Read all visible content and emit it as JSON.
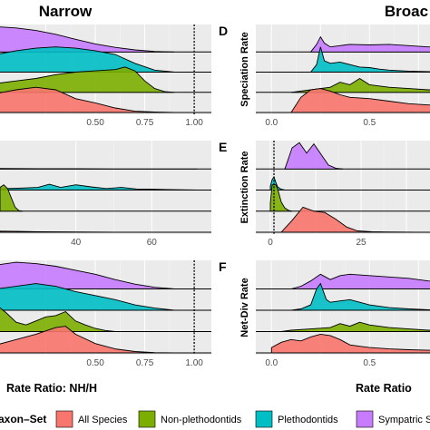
{
  "figure": {
    "left_title": "Narrow",
    "right_title": "Broac",
    "left_xlabel": "Rate Ratio: NH/H",
    "right_xlabel": "Rate Ratio"
  },
  "legend": {
    "title": "axon–Set",
    "entries": [
      {
        "label": "All Species",
        "color": "#f8766d"
      },
      {
        "label": "Non-plethodontids",
        "color": "#7cae00"
      },
      {
        "label": "Plethodontids",
        "color": "#00bfc4"
      },
      {
        "label": "Sympatric S",
        "color": "#c77cff"
      }
    ]
  },
  "colors": {
    "all_species": "#f8766d",
    "non_plethodontids": "#7cae00",
    "plethodontids": "#00bfc4",
    "sympatric": "#c77cff",
    "panel_bg": "#ebebeb"
  },
  "chart_data": [
    {
      "id": "narrow-speciation",
      "type": "area",
      "panel_letter": "",
      "ylabel": "",
      "xlim": [
        0.0,
        1.05
      ],
      "xticks": [
        0.25,
        0.5,
        0.75,
        1.0
      ],
      "xtick_labels": [
        "",
        "0.50",
        "0.75",
        "1.00"
      ],
      "reference_x": 1.0,
      "series": [
        {
          "key": "all_species",
          "x": [
            0.0,
            0.1,
            0.2,
            0.3,
            0.4,
            0.5,
            0.6,
            0.7,
            0.8,
            0.9,
            0.95
          ],
          "y": [
            0.75,
            0.9,
            1.0,
            0.9,
            0.55,
            0.38,
            0.18,
            0.05,
            0.02,
            0.0,
            0.0
          ]
        },
        {
          "key": "non_plethodontids",
          "x": [
            0.0,
            0.1,
            0.2,
            0.3,
            0.4,
            0.5,
            0.6,
            0.65,
            0.7,
            0.75,
            0.8,
            0.85,
            0.9
          ],
          "y": [
            0.35,
            0.45,
            0.55,
            0.7,
            0.8,
            0.85,
            0.9,
            1.0,
            0.85,
            0.45,
            0.15,
            0.03,
            0.0
          ]
        },
        {
          "key": "plethodontids",
          "x": [
            0.0,
            0.1,
            0.2,
            0.3,
            0.4,
            0.5,
            0.6,
            0.7,
            0.8,
            0.9
          ],
          "y": [
            0.7,
            0.85,
            0.95,
            1.0,
            0.95,
            0.85,
            0.7,
            0.35,
            0.08,
            0.0
          ]
        },
        {
          "key": "sympatric",
          "x": [
            0.0,
            0.1,
            0.2,
            0.3,
            0.4,
            0.5,
            0.6,
            0.7,
            0.8,
            0.9
          ],
          "y": [
            1.0,
            0.95,
            0.85,
            0.7,
            0.5,
            0.32,
            0.18,
            0.08,
            0.02,
            0.0
          ]
        }
      ]
    },
    {
      "id": "narrow-extinction",
      "type": "area",
      "panel_letter": "",
      "ylabel": "",
      "xlim": [
        20,
        75
      ],
      "xticks": [
        40,
        60
      ],
      "xtick_labels": [
        "40",
        "60"
      ],
      "reference_x": null,
      "series": [
        {
          "key": "all_species",
          "x": [
            20,
            25,
            30,
            40,
            50,
            60,
            72
          ],
          "y": [
            0.04,
            0.03,
            0.02,
            0.01,
            0.0,
            0.0,
            0.0
          ]
        },
        {
          "key": "non_plethodontids",
          "x": [
            20,
            21,
            22,
            23,
            24,
            25,
            26
          ],
          "y": [
            0.9,
            1.0,
            0.85,
            0.5,
            0.15,
            0.02,
            0.0
          ]
        },
        {
          "key": "plethodontids",
          "x": [
            20,
            25,
            30,
            33,
            36,
            40,
            44,
            48,
            52,
            56,
            60,
            64,
            68,
            72
          ],
          "y": [
            0.05,
            0.07,
            0.1,
            0.22,
            0.1,
            0.2,
            0.12,
            0.06,
            0.1,
            0.04,
            0.03,
            0.02,
            0.01,
            0.0
          ]
        },
        {
          "key": "sympatric",
          "x": [
            20,
            30,
            40,
            50,
            60,
            72
          ],
          "y": [
            0.02,
            0.01,
            0.01,
            0.0,
            0.0,
            0.0
          ]
        }
      ]
    },
    {
      "id": "narrow-netdiv",
      "type": "area",
      "panel_letter": "",
      "ylabel": "",
      "xlim": [
        0.0,
        1.05
      ],
      "xticks": [
        0.25,
        0.5,
        0.75,
        1.0
      ],
      "xtick_labels": [
        "",
        "0.50",
        "0.75",
        "1.00"
      ],
      "reference_x": 1.0,
      "series": [
        {
          "key": "all_species",
          "x": [
            0.0,
            0.1,
            0.2,
            0.3,
            0.35,
            0.4,
            0.5,
            0.6,
            0.7,
            0.8,
            0.9
          ],
          "y": [
            0.3,
            0.5,
            0.7,
            0.95,
            1.0,
            0.7,
            0.35,
            0.15,
            0.05,
            0.01,
            0.0
          ]
        },
        {
          "key": "non_plethodontids",
          "x": [
            0.0,
            0.05,
            0.1,
            0.15,
            0.2,
            0.25,
            0.3,
            0.35,
            0.4,
            0.45,
            0.5,
            0.55,
            0.6
          ],
          "y": [
            1.0,
            0.7,
            0.35,
            0.25,
            0.4,
            0.55,
            0.6,
            0.75,
            0.4,
            0.25,
            0.12,
            0.04,
            0.0
          ]
        },
        {
          "key": "plethodontids",
          "x": [
            0.0,
            0.1,
            0.2,
            0.3,
            0.4,
            0.5,
            0.6,
            0.7,
            0.8,
            0.9
          ],
          "y": [
            0.8,
            0.9,
            1.0,
            0.9,
            0.7,
            0.55,
            0.4,
            0.2,
            0.08,
            0.0
          ]
        },
        {
          "key": "sympatric",
          "x": [
            0.0,
            0.1,
            0.2,
            0.3,
            0.4,
            0.5,
            0.6,
            0.7,
            0.8,
            0.9
          ],
          "y": [
            0.9,
            1.0,
            0.95,
            0.85,
            0.7,
            0.55,
            0.35,
            0.18,
            0.06,
            0.0
          ]
        }
      ]
    },
    {
      "id": "broad-speciation",
      "type": "area",
      "panel_letter": "D",
      "ylabel": "Speciation Rate",
      "xlim": [
        -0.08,
        0.92
      ],
      "xticks": [
        0.0,
        0.25,
        0.5,
        0.75
      ],
      "xtick_labels": [
        "0.0",
        "",
        "0.5",
        ""
      ],
      "reference_x": null,
      "series": [
        {
          "key": "all_species",
          "x": [
            0.1,
            0.15,
            0.2,
            0.25,
            0.3,
            0.35,
            0.4,
            0.5,
            0.6,
            0.7,
            0.8,
            0.92
          ],
          "y": [
            0.0,
            0.6,
            0.9,
            0.95,
            0.85,
            0.7,
            0.6,
            0.55,
            0.45,
            0.35,
            0.3,
            0.3
          ]
        },
        {
          "key": "non_plethodontids",
          "x": [
            0.1,
            0.2,
            0.3,
            0.35,
            0.4,
            0.45,
            0.5,
            0.6,
            0.7,
            0.8,
            0.92
          ],
          "y": [
            0.0,
            0.1,
            0.2,
            0.4,
            0.3,
            0.55,
            0.3,
            0.2,
            0.15,
            0.1,
            0.1
          ]
        },
        {
          "key": "plethodontids",
          "x": [
            0.2,
            0.23,
            0.25,
            0.27,
            0.3,
            0.35,
            0.4,
            0.45,
            0.5,
            0.55,
            0.6,
            0.7,
            0.8,
            0.92
          ],
          "y": [
            0.0,
            0.3,
            1.0,
            0.45,
            0.35,
            0.4,
            0.3,
            0.2,
            0.18,
            0.12,
            0.08,
            0.04,
            0.02,
            0.02
          ]
        },
        {
          "key": "sympatric",
          "x": [
            0.2,
            0.23,
            0.25,
            0.27,
            0.3,
            0.35,
            0.4,
            0.5,
            0.6,
            0.7,
            0.8,
            0.92
          ],
          "y": [
            0.0,
            0.3,
            0.6,
            0.35,
            0.2,
            0.25,
            0.3,
            0.28,
            0.3,
            0.25,
            0.2,
            0.2
          ]
        }
      ]
    },
    {
      "id": "broad-extinction",
      "type": "area",
      "panel_letter": "E",
      "ylabel": "Extinction Rate",
      "xlim": [
        -4,
        50
      ],
      "xticks": [
        0,
        12.5,
        25,
        37.5
      ],
      "xtick_labels": [
        "0",
        "",
        "25",
        ""
      ],
      "reference_x": 1,
      "series": [
        {
          "key": "all_species",
          "x": [
            3,
            6,
            9,
            12,
            15,
            18,
            21,
            24,
            28,
            32,
            40,
            50
          ],
          "y": [
            0.0,
            0.45,
            0.95,
            0.8,
            0.75,
            0.5,
            0.2,
            0.05,
            0.02,
            0.01,
            0.0,
            0.0
          ]
        },
        {
          "key": "non_plethodontids",
          "x": [
            0,
            0.5,
            1,
            1.5,
            2,
            2.5,
            3,
            4,
            5,
            6
          ],
          "y": [
            0.3,
            1.0,
            1.0,
            1.0,
            0.85,
            0.6,
            0.35,
            0.12,
            0.03,
            0.0
          ]
        },
        {
          "key": "plethodontids",
          "x": [
            0,
            0.5,
            1,
            1.5,
            2,
            3,
            4,
            5
          ],
          "y": [
            0.15,
            0.4,
            0.5,
            0.3,
            0.12,
            0.03,
            0.0,
            0.0
          ]
        },
        {
          "key": "sympatric",
          "x": [
            4,
            6,
            8,
            10,
            12,
            14,
            16,
            18,
            20
          ],
          "y": [
            0.0,
            0.8,
            1.0,
            0.6,
            0.95,
            0.55,
            0.15,
            0.03,
            0.0
          ]
        }
      ]
    },
    {
      "id": "broad-netdiv",
      "type": "area",
      "panel_letter": "F",
      "ylabel": "Net-Div Rate",
      "xlim": [
        -0.08,
        0.92
      ],
      "xticks": [
        0.0,
        0.25,
        0.5,
        0.75
      ],
      "xtick_labels": [
        "0.0",
        "",
        "0.5",
        ""
      ],
      "reference_x": null,
      "series": [
        {
          "key": "all_species",
          "x": [
            0.0,
            0.05,
            0.1,
            0.15,
            0.2,
            0.25,
            0.3,
            0.35,
            0.4,
            0.45,
            0.5,
            0.6,
            0.7,
            0.8,
            0.92
          ],
          "y": [
            0.2,
            0.4,
            0.5,
            0.45,
            0.6,
            0.7,
            0.65,
            0.5,
            0.3,
            0.25,
            0.2,
            0.15,
            0.12,
            0.1,
            0.1
          ]
        },
        {
          "key": "non_plethodontids",
          "x": [
            0.05,
            0.1,
            0.2,
            0.3,
            0.35,
            0.4,
            0.45,
            0.5,
            0.6,
            0.7,
            0.8,
            0.92
          ],
          "y": [
            0.0,
            0.05,
            0.1,
            0.15,
            0.3,
            0.2,
            0.35,
            0.25,
            0.15,
            0.1,
            0.05,
            0.05
          ]
        },
        {
          "key": "plethodontids",
          "x": [
            0.1,
            0.15,
            0.2,
            0.23,
            0.25,
            0.28,
            0.3,
            0.35,
            0.4,
            0.45,
            0.5,
            0.55,
            0.6,
            0.7,
            0.8,
            0.92
          ],
          "y": [
            0.0,
            0.05,
            0.2,
            0.8,
            1.0,
            0.4,
            0.3,
            0.35,
            0.4,
            0.3,
            0.2,
            0.15,
            0.1,
            0.05,
            0.02,
            0.02
          ]
        },
        {
          "key": "sympatric",
          "x": [
            0.1,
            0.15,
            0.2,
            0.25,
            0.3,
            0.35,
            0.4,
            0.5,
            0.6,
            0.7,
            0.8,
            0.92
          ],
          "y": [
            0.0,
            0.1,
            0.3,
            0.55,
            0.35,
            0.5,
            0.55,
            0.5,
            0.45,
            0.4,
            0.3,
            0.25
          ]
        }
      ]
    }
  ]
}
